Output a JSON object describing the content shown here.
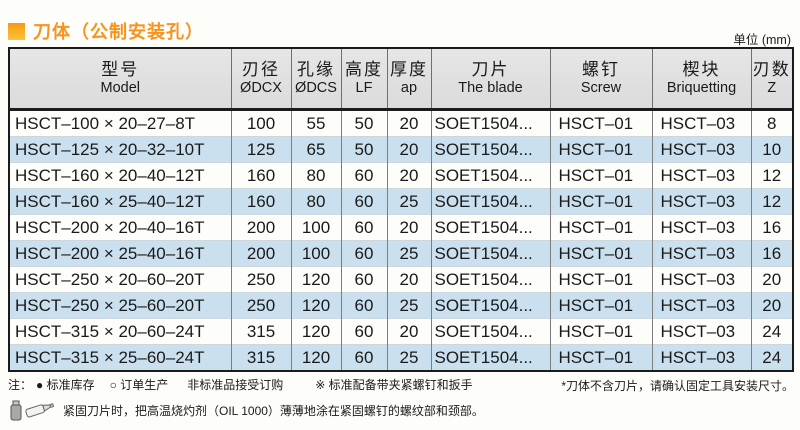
{
  "page": {
    "title": "刀体（公制安装孔）",
    "unit_label": "单位 (mm)"
  },
  "table": {
    "headers": [
      {
        "zh": "型号",
        "en": "Model"
      },
      {
        "zh": "刃径",
        "en": "ØDCX"
      },
      {
        "zh": "孔缘",
        "en": "ØDCS"
      },
      {
        "zh": "高度",
        "en": "LF"
      },
      {
        "zh": "厚度",
        "en": "ap"
      },
      {
        "zh": "刀片",
        "en": "The blade"
      },
      {
        "zh": "螺钉",
        "en": "Screw"
      },
      {
        "zh": "楔块",
        "en": "Briquetting"
      },
      {
        "zh": "刃数",
        "en": "Z"
      }
    ],
    "rows": [
      [
        "HSCT–100 × 20–27–8T",
        "100",
        "55",
        "50",
        "20",
        "SOET1504...",
        "HSCT–01",
        "HSCT–03",
        "8"
      ],
      [
        "HSCT–125 × 20–32–10T",
        "125",
        "65",
        "50",
        "20",
        "SOET1504...",
        "HSCT–01",
        "HSCT–03",
        "10"
      ],
      [
        "HSCT–160 × 20–40–12T",
        "160",
        "80",
        "60",
        "20",
        "SOET1504...",
        "HSCT–01",
        "HSCT–03",
        "12"
      ],
      [
        "HSCT–160 × 25–40–12T",
        "160",
        "80",
        "60",
        "25",
        "SOET1504...",
        "HSCT–01",
        "HSCT–03",
        "12"
      ],
      [
        "HSCT–200 × 20–40–16T",
        "200",
        "100",
        "60",
        "20",
        "SOET1504...",
        "HSCT–01",
        "HSCT–03",
        "16"
      ],
      [
        "HSCT–200 × 25–40–16T",
        "200",
        "100",
        "60",
        "25",
        "SOET1504...",
        "HSCT–01",
        "HSCT–03",
        "16"
      ],
      [
        "HSCT–250 × 20–60–20T",
        "250",
        "120",
        "60",
        "20",
        "SOET1504...",
        "HSCT–01",
        "HSCT–03",
        "20"
      ],
      [
        "HSCT–250 × 25–60–20T",
        "250",
        "120",
        "60",
        "25",
        "SOET1504...",
        "HSCT–01",
        "HSCT–03",
        "20"
      ],
      [
        "HSCT–315 × 20–60–24T",
        "315",
        "120",
        "60",
        "20",
        "SOET1504...",
        "HSCT–01",
        "HSCT–03",
        "24"
      ],
      [
        "HSCT–315 × 25–60–24T",
        "315",
        "120",
        "60",
        "25",
        "SOET1504...",
        "HSCT–01",
        "HSCT–03",
        "24"
      ]
    ]
  },
  "notes": {
    "prefix": "注：",
    "legend_stock": "● 标准库存",
    "legend_order": "○ 订单生产",
    "legend_nonstandard": "非标准品接受订购",
    "legend_equipped": "※ 标准配备带夹紧螺钉和扳手",
    "right_note": "*刀体不含刀片，请确认固定工具安装尺寸。",
    "line2": "紧固刀片时，把高温烧灼剂（OIL 1000）薄薄地涂在紧固螺钉的螺纹部和颈部。"
  },
  "colors": {
    "accent_orange": "#f7941e",
    "row_alt_blue": "#cbe0ef",
    "header_gray": "#e1e1e1",
    "table_border": "#1b1b1b"
  }
}
